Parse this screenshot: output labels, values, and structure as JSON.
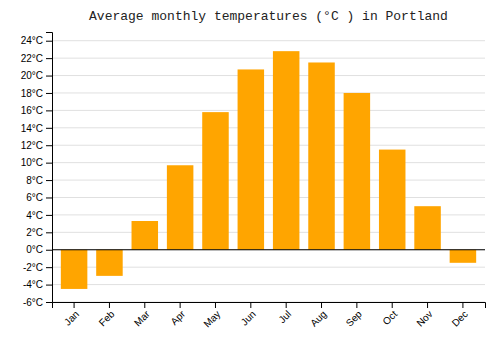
{
  "chart_data": {
    "type": "bar",
    "title": "Average monthly temperatures (°C ) in Portland",
    "categories": [
      "Jan",
      "Feb",
      "Mar",
      "Apr",
      "May",
      "Jun",
      "Jul",
      "Aug",
      "Sep",
      "Oct",
      "Nov",
      "Dec"
    ],
    "values": [
      -4.5,
      -3.0,
      3.3,
      9.7,
      15.8,
      20.7,
      22.8,
      21.5,
      18.0,
      11.5,
      5.0,
      -1.5
    ],
    "color": "#FFA500",
    "ylim": [
      -6,
      25
    ],
    "yticks": [
      {
        "value": -6,
        "label": "-6°C"
      },
      {
        "value": -4,
        "label": "-4°C"
      },
      {
        "value": -2,
        "label": "-2°C"
      },
      {
        "value": 0,
        "label": "0°C"
      },
      {
        "value": 2,
        "label": "2°C"
      },
      {
        "value": 4,
        "label": "4°C"
      },
      {
        "value": 6,
        "label": "6°C"
      },
      {
        "value": 8,
        "label": "8°C"
      },
      {
        "value": 10,
        "label": "10°C"
      },
      {
        "value": 12,
        "label": "12°C"
      },
      {
        "value": 14,
        "label": "14°C"
      },
      {
        "value": 16,
        "label": "16°C"
      },
      {
        "value": 18,
        "label": "18°C"
      },
      {
        "value": 20,
        "label": "20°C"
      },
      {
        "value": 22,
        "label": "22°C"
      },
      {
        "value": 24,
        "label": "24°C"
      }
    ],
    "grid": true
  }
}
